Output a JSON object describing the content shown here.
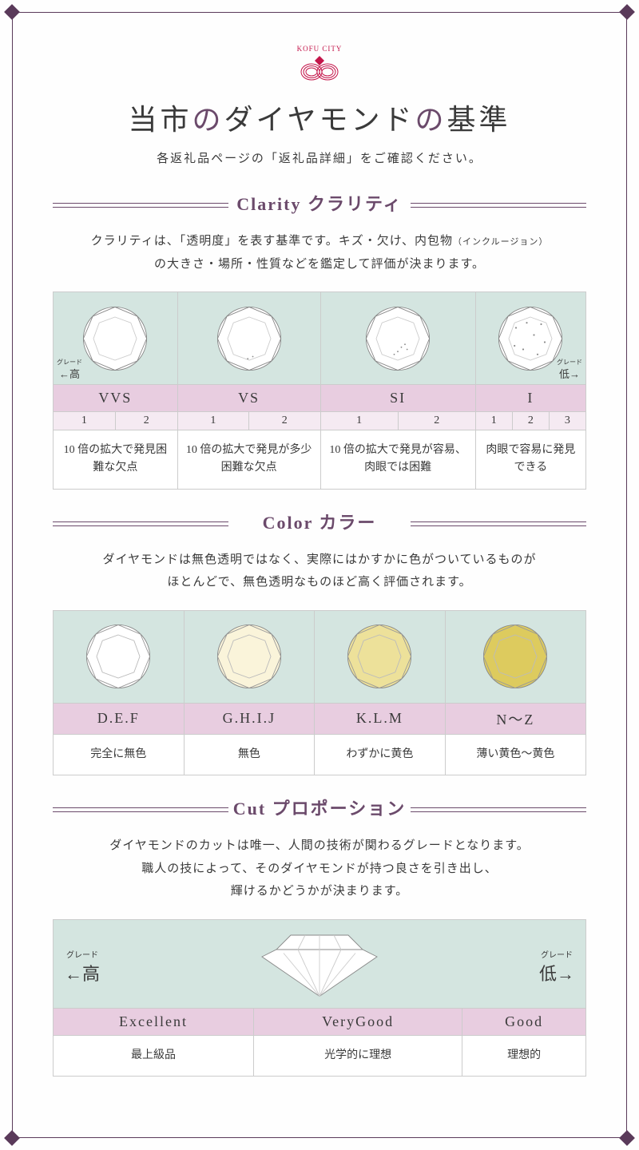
{
  "logo": {
    "text": "KOFU CITY"
  },
  "title": {
    "prefix": "当市",
    "mid1": "の",
    "accent": "ダイヤモンド",
    "mid2": "の",
    "suffix": "基準"
  },
  "subtitle": "各返礼品ページの「返礼品詳細」をご確認ください。",
  "colors": {
    "accent": "#6b4a6b",
    "logo": "#c4154a",
    "diamond_bg": "#d4e5e0",
    "grade_bg": "#e8cde0",
    "sub_bg": "#f5eaf2",
    "border": "#cccccc",
    "diamond_line": "#888888",
    "color_fills": [
      "#ffffff",
      "#faf4da",
      "#ede19a",
      "#ddcb5e"
    ]
  },
  "arrow": {
    "high_ruby": "グレード",
    "high": "←高",
    "low_ruby": "グレード",
    "low": "低→"
  },
  "clarity": {
    "title": "Clarity クラリティ",
    "desc_line1": "クラリティは、「透明度」を表す基準です。キズ・欠け、内包物",
    "desc_small": "（インクルージョン）",
    "desc_line2": "の大きさ・場所・性質などを鑑定して評価が決まります。",
    "grades": [
      "VVS",
      "VS",
      "SI",
      "I"
    ],
    "subs": [
      [
        "1",
        "2"
      ],
      [
        "1",
        "2"
      ],
      [
        "1",
        "2"
      ],
      [
        "1",
        "2",
        "3"
      ]
    ],
    "descs": [
      "10 倍の拡大で発見困難な欠点",
      "10 倍の拡大で発見が多少困難な欠点",
      "10 倍の拡大で発見が容易、肉眼では困難",
      "肉眼で容易に発見できる"
    ]
  },
  "color": {
    "title": "Color カラー",
    "desc_line1": "ダイヤモンドは無色透明ではなく、実際にはかすかに色がついているものが",
    "desc_line2": "ほとんどで、無色透明なものほど高く評価されます。",
    "grades": [
      "D.E.F",
      "G.H.I.J",
      "K.L.M",
      "N～Z"
    ],
    "descs": [
      "完全に無色",
      "無色",
      "わずかに黄色",
      "薄い黄色～黄色"
    ]
  },
  "cut": {
    "title": "Cut プロポーション",
    "desc_line1": "ダイヤモンドのカットは唯一、人間の技術が関わるグレードとなります。",
    "desc_line2": "職人の技によって、そのダイヤモンドが持つ良さを引き出し、",
    "desc_line3": "輝けるかどうかが決まります。",
    "grades": [
      "Excellent",
      "VeryGood",
      "Good"
    ],
    "descs": [
      "最上級品",
      "光学的に理想",
      "理想的"
    ]
  }
}
